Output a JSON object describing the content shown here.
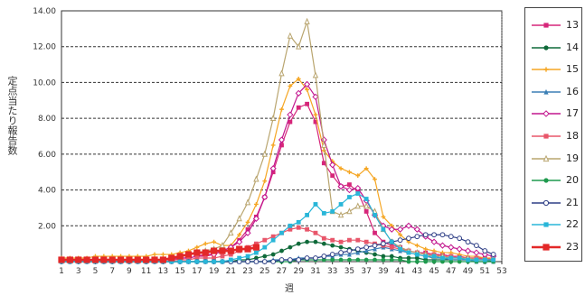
{
  "chart_data": {
    "type": "line",
    "title": "",
    "xlabel": "週",
    "ylabel": "定点当たり報告数",
    "x_ticks": [
      1,
      3,
      5,
      7,
      9,
      11,
      13,
      15,
      17,
      19,
      21,
      23,
      25,
      27,
      29,
      31,
      33,
      35,
      37,
      39,
      41,
      43,
      45,
      47,
      49,
      51,
      53
    ],
    "y_ticks": [
      "2.00",
      "4.00",
      "6.00",
      "8.00",
      "10.00",
      "12.00",
      "14.00"
    ],
    "ylim": [
      0,
      14
    ],
    "xlim": [
      1,
      53
    ],
    "grid": "horizontal dashed",
    "legend_position": "right",
    "series": [
      {
        "name": "13",
        "color": "#d6267a",
        "marker": "square-filled",
        "values": [
          0.1,
          0.1,
          0.1,
          0.1,
          0.1,
          0.1,
          0.1,
          0.1,
          0.1,
          0.1,
          0.1,
          0.1,
          0.1,
          0.1,
          0.2,
          0.2,
          0.3,
          0.3,
          0.4,
          0.6,
          0.8,
          1.2,
          1.8,
          2.5,
          3.6,
          5.0,
          6.5,
          7.8,
          8.6,
          8.8,
          7.8,
          5.5,
          4.8,
          4.2,
          4.3,
          3.9,
          2.8,
          1.6,
          1.1,
          0.9,
          0.8,
          0.6,
          0.5,
          0.5,
          0.4,
          0.4,
          0.3,
          0.3,
          0.2,
          0.2,
          0.2,
          0.1
        ]
      },
      {
        "name": "14",
        "color": "#0f6a3a",
        "marker": "circle-filled",
        "values": [
          0.0,
          0.0,
          0.0,
          0.0,
          0.0,
          0.0,
          0.0,
          0.0,
          0.0,
          0.0,
          0.0,
          0.0,
          0.0,
          0.0,
          0.0,
          0.0,
          0.0,
          0.0,
          0.0,
          0.0,
          0.0,
          0.1,
          0.1,
          0.2,
          0.3,
          0.4,
          0.6,
          0.8,
          1.0,
          1.1,
          1.1,
          1.0,
          0.9,
          0.8,
          0.7,
          0.6,
          0.5,
          0.4,
          0.3,
          0.3,
          0.2,
          0.2,
          0.2,
          0.1,
          0.1,
          0.1,
          0.1,
          0.1,
          0.1,
          0.1,
          0.1,
          0.0
        ]
      },
      {
        "name": "15",
        "color": "#f5a623",
        "marker": "plus",
        "values": [
          0.2,
          0.2,
          0.2,
          0.2,
          0.3,
          0.3,
          0.3,
          0.3,
          0.3,
          0.3,
          0.3,
          0.4,
          0.4,
          0.4,
          0.5,
          0.6,
          0.8,
          1.0,
          1.1,
          0.9,
          0.9,
          1.5,
          2.2,
          3.2,
          4.5,
          6.5,
          8.5,
          9.8,
          10.2,
          9.6,
          8.2,
          6.2,
          5.6,
          5.2,
          5.0,
          4.8,
          5.2,
          4.6,
          2.5,
          2.0,
          1.5,
          1.1,
          0.9,
          0.7,
          0.6,
          0.5,
          0.5,
          0.4,
          0.3,
          0.3,
          0.2,
          0.2
        ]
      },
      {
        "name": "16",
        "color": "#3b7fb5",
        "marker": "triangle-filled",
        "values": [
          0.0,
          0.0,
          0.0,
          0.0,
          0.0,
          0.0,
          0.0,
          0.0,
          0.0,
          0.0,
          0.0,
          0.0,
          0.0,
          0.0,
          0.0,
          0.0,
          0.0,
          0.0,
          0.0,
          0.0,
          0.0,
          0.0,
          0.0,
          0.0,
          0.0,
          0.1,
          0.1,
          0.1,
          0.2,
          0.2,
          0.2,
          0.3,
          0.3,
          0.4,
          0.4,
          0.5,
          0.6,
          0.7,
          0.8,
          0.7,
          0.6,
          0.5,
          0.4,
          0.3,
          0.2,
          0.2,
          0.1,
          0.1,
          0.1,
          0.0,
          0.0,
          0.0
        ]
      },
      {
        "name": "17",
        "color": "#c2168e",
        "marker": "diamond-open",
        "values": [
          0.1,
          0.1,
          0.1,
          0.1,
          0.1,
          0.1,
          0.1,
          0.1,
          0.1,
          0.1,
          0.1,
          0.1,
          0.1,
          0.1,
          0.2,
          0.2,
          0.3,
          0.4,
          0.4,
          0.6,
          0.8,
          1.1,
          1.6,
          2.4,
          3.6,
          5.2,
          6.8,
          8.2,
          9.4,
          9.9,
          9.2,
          6.8,
          5.4,
          4.2,
          4.0,
          4.1,
          3.4,
          2.6,
          2.0,
          1.8,
          1.8,
          2.0,
          1.8,
          1.4,
          1.1,
          0.9,
          0.8,
          0.7,
          0.6,
          0.5,
          0.4,
          0.3
        ]
      },
      {
        "name": "18",
        "color": "#e8566a",
        "marker": "square-filled",
        "values": [
          0.1,
          0.1,
          0.1,
          0.1,
          0.1,
          0.1,
          0.1,
          0.1,
          0.1,
          0.1,
          0.1,
          0.1,
          0.1,
          0.1,
          0.1,
          0.1,
          0.2,
          0.2,
          0.2,
          0.3,
          0.4,
          0.6,
          0.8,
          1.0,
          1.2,
          1.4,
          1.6,
          1.8,
          1.9,
          1.8,
          1.6,
          1.3,
          1.2,
          1.1,
          1.2,
          1.2,
          1.1,
          1.0,
          0.9,
          0.8,
          0.7,
          0.6,
          0.5,
          0.4,
          0.4,
          0.3,
          0.3,
          0.2,
          0.2,
          0.2,
          0.1,
          0.1
        ]
      },
      {
        "name": "19",
        "color": "#b9a56f",
        "marker": "triangle-open",
        "values": [
          0.1,
          0.1,
          0.1,
          0.1,
          0.1,
          0.1,
          0.1,
          0.1,
          0.1,
          0.1,
          0.1,
          0.1,
          0.1,
          0.2,
          0.3,
          0.4,
          0.5,
          0.6,
          0.7,
          0.9,
          1.6,
          2.4,
          3.3,
          4.6,
          6.0,
          8.0,
          10.5,
          12.6,
          12.0,
          13.4,
          10.4,
          6.5,
          2.8,
          2.6,
          2.8,
          3.1,
          3.1,
          2.8,
          1.8,
          1.1,
          0.8,
          0.6,
          0.5,
          0.4,
          0.3,
          0.3,
          0.2,
          0.2,
          0.2,
          0.1,
          0.1,
          0.1
        ]
      },
      {
        "name": "20",
        "color": "#1f9a4e",
        "marker": "circle-filled",
        "values": [
          0.0,
          0.0,
          0.0,
          0.0,
          0.0,
          0.0,
          0.0,
          0.0,
          0.0,
          0.0,
          0.0,
          0.0,
          0.0,
          0.0,
          0.0,
          0.0,
          0.0,
          0.0,
          0.0,
          0.0,
          0.0,
          0.0,
          0.0,
          0.0,
          0.0,
          0.0,
          0.0,
          0.0,
          0.1,
          0.1,
          0.1,
          0.1,
          0.1,
          0.1,
          0.1,
          0.1,
          0.1,
          0.1,
          0.1,
          0.1,
          0.1,
          0.0,
          0.0,
          0.0,
          0.0,
          0.0,
          0.0,
          0.0,
          0.0,
          0.0,
          0.0,
          0.0
        ]
      },
      {
        "name": "21",
        "color": "#2f3f86",
        "marker": "circle-open",
        "values": [
          0.0,
          0.0,
          0.0,
          0.0,
          0.0,
          0.0,
          0.0,
          0.0,
          0.0,
          0.0,
          0.0,
          0.0,
          0.0,
          0.0,
          0.0,
          0.0,
          0.0,
          0.0,
          0.0,
          0.0,
          0.0,
          0.0,
          0.0,
          0.0,
          0.0,
          0.0,
          0.1,
          0.1,
          0.1,
          0.2,
          0.2,
          0.3,
          0.4,
          0.5,
          0.6,
          0.7,
          0.8,
          0.9,
          1.0,
          1.1,
          1.2,
          1.3,
          1.4,
          1.5,
          1.5,
          1.5,
          1.4,
          1.3,
          1.1,
          0.9,
          0.6,
          0.4
        ]
      },
      {
        "name": "22",
        "color": "#29b6d8",
        "marker": "square-filled",
        "values": [
          0.0,
          0.0,
          0.0,
          0.0,
          0.0,
          0.0,
          0.0,
          0.0,
          0.0,
          0.0,
          0.0,
          0.0,
          0.0,
          0.0,
          0.0,
          0.0,
          0.0,
          0.0,
          0.0,
          0.0,
          0.1,
          0.2,
          0.3,
          0.5,
          0.8,
          1.2,
          1.6,
          2.0,
          2.2,
          2.6,
          3.2,
          2.7,
          2.8,
          3.2,
          3.6,
          3.8,
          3.5,
          2.6,
          1.8,
          1.1,
          0.7,
          0.5,
          0.4,
          0.3,
          0.3,
          0.2,
          0.2,
          0.2,
          0.1,
          0.1,
          0.1,
          0.1
        ]
      },
      {
        "name": "23",
        "color": "#e32828",
        "marker": "square-filled",
        "thick": true,
        "values": [
          0.1,
          0.1,
          0.1,
          0.1,
          0.1,
          0.1,
          0.1,
          0.1,
          0.1,
          0.1,
          0.1,
          0.1,
          0.1,
          0.2,
          0.3,
          0.4,
          0.5,
          0.5,
          0.6,
          0.6,
          0.6,
          0.7,
          0.7,
          0.8
        ]
      }
    ]
  }
}
